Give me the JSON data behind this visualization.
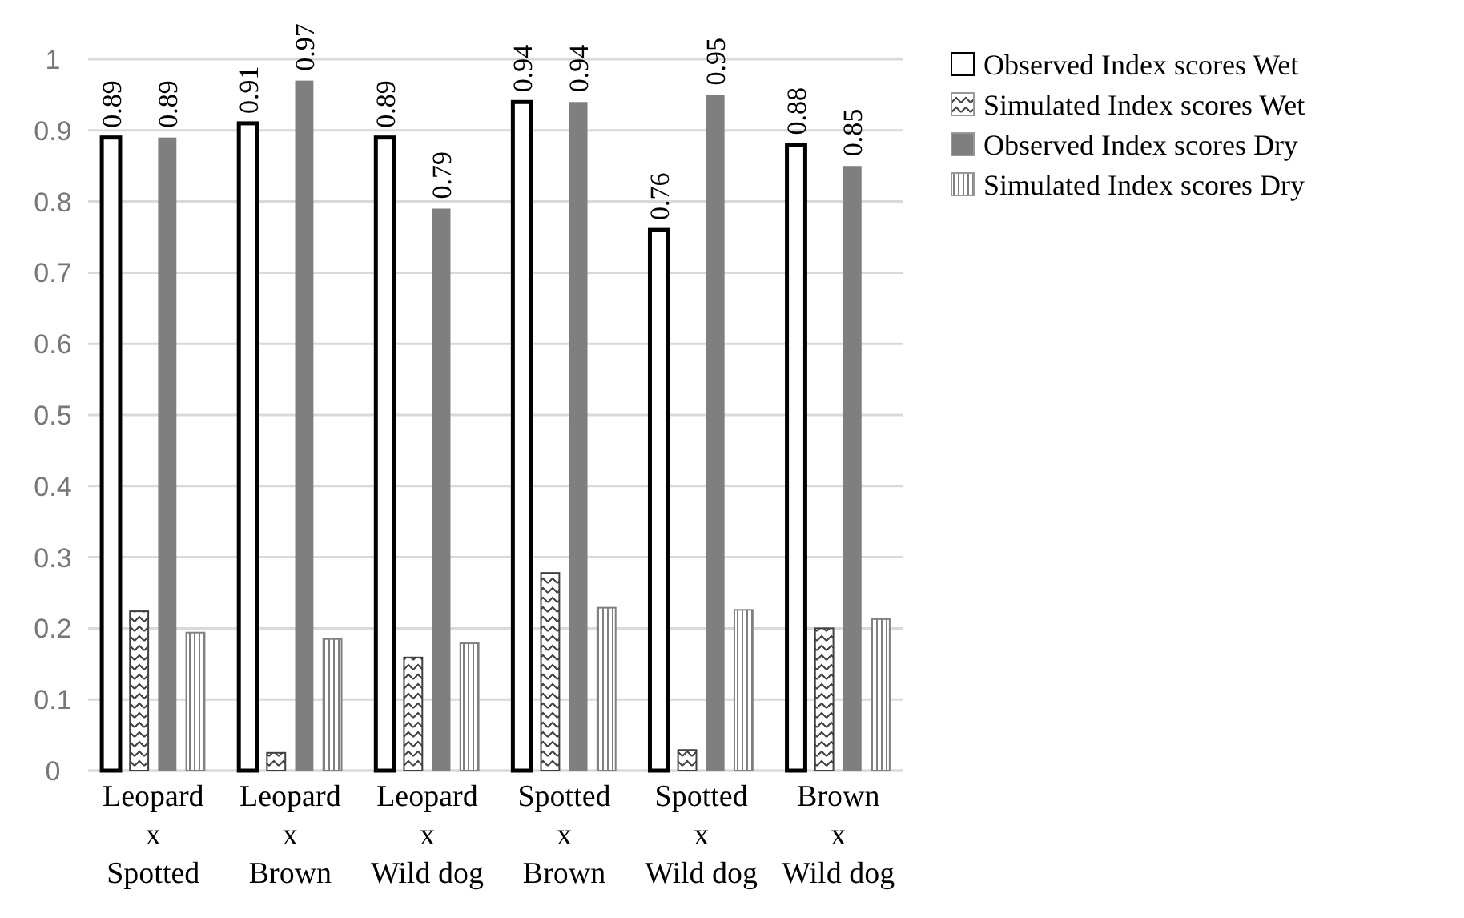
{
  "chart_data": {
    "type": "bar",
    "categories": [
      "Leopard\nx\nSpotted",
      "Leopard\nx\nBrown",
      "Leopard\nx\nWild dog",
      "Spotted\nx\nBrown",
      "Spotted\nx\nWild dog",
      "Brown\nx\nWild dog"
    ],
    "series": [
      {
        "name": "Observed Index scores Wet",
        "color": "#ffffff",
        "values": [
          0.89,
          0.91,
          0.89,
          0.94,
          0.76,
          0.88
        ],
        "value_labels": [
          "0.89",
          "0.91",
          "0.89",
          "0.94",
          "0.76",
          "0.88"
        ]
      },
      {
        "name": "Simulated Index scores Wet",
        "color": "#404040",
        "values": [
          0.224,
          0.025,
          0.159,
          0.278,
          0.029,
          0.2
        ]
      },
      {
        "name": "Observed Index scores Dry",
        "color": "#7f7f7f",
        "values": [
          0.89,
          0.97,
          0.79,
          0.94,
          0.95,
          0.85
        ],
        "value_labels": [
          "0.89",
          "0.97",
          "0.79",
          "0.94",
          "0.95",
          "0.85"
        ]
      },
      {
        "name": "Simulated Index scores Dry",
        "color": "#808080",
        "values": [
          0.194,
          0.185,
          0.179,
          0.229,
          0.226,
          0.213
        ]
      }
    ],
    "ylim": [
      0,
      1
    ],
    "yticks": [
      0,
      0.1,
      0.2,
      0.3,
      0.4,
      0.5,
      0.6,
      0.7,
      0.8,
      0.9,
      1
    ],
    "grid": "y",
    "legend": "top right"
  }
}
